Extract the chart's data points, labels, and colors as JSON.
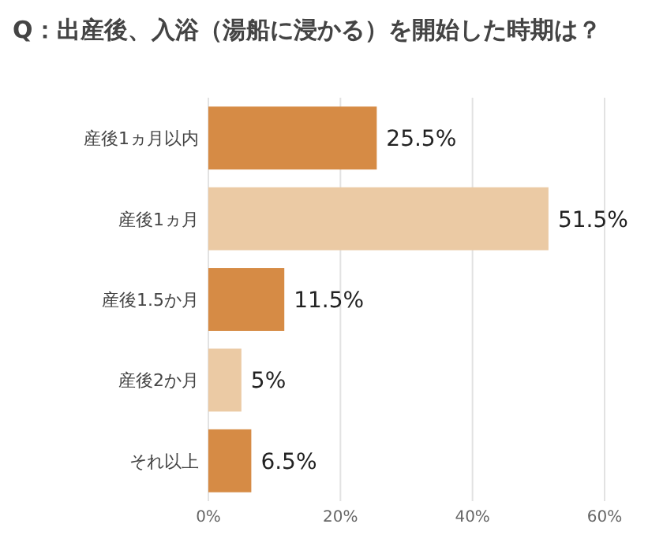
{
  "chart_data": {
    "type": "bar",
    "orientation": "horizontal",
    "title": "Q：出産後、入浴（湯船に浸かる）を開始した時期は？",
    "categories": [
      "産後1ヵ月以内",
      "産後1ヵ月",
      "産後1.5か月",
      "産後2か月",
      "それ以上"
    ],
    "values": [
      25.5,
      51.5,
      11.5,
      5,
      6.5
    ],
    "value_labels": [
      "25.5%",
      "51.5%",
      "11.5%",
      "5%",
      "6.5%"
    ],
    "colors": [
      "#d68b45",
      "#ebcaa4",
      "#d68b45",
      "#ebcaa4",
      "#d68b45"
    ],
    "xlim": [
      0,
      60
    ],
    "xticks": [
      {
        "value": 0,
        "label": "0%"
      },
      {
        "value": 20,
        "label": "20%"
      },
      {
        "value": 40,
        "label": "40%"
      },
      {
        "value": 60,
        "label": "60%"
      }
    ],
    "grid": "x"
  }
}
